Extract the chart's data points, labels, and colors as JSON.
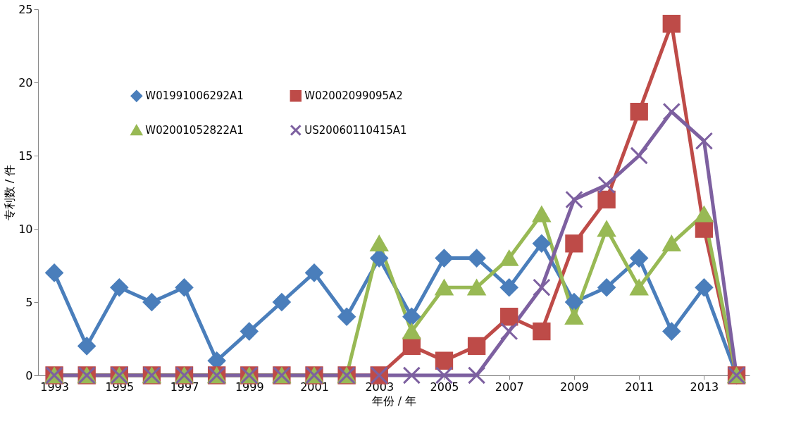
{
  "chart_data": {
    "type": "line",
    "xlabel": "年份 / 年",
    "ylabel": "专利数 / 件",
    "x": [
      1993,
      1994,
      1995,
      1996,
      1997,
      1998,
      1999,
      2000,
      2001,
      2002,
      2003,
      2004,
      2005,
      2006,
      2007,
      2008,
      2009,
      2010,
      2011,
      2012,
      2013,
      2014
    ],
    "xlim": [
      1992.5,
      2014.4
    ],
    "xticks": [
      1993,
      1995,
      1997,
      1999,
      2001,
      2003,
      2005,
      2007,
      2009,
      2011,
      2013
    ],
    "ylim": [
      0,
      25
    ],
    "yticks": [
      0,
      5,
      10,
      15,
      20,
      25
    ],
    "grid": false,
    "legend": "top",
    "line_style": "solid",
    "series": [
      {
        "name": "W01991006292A1",
        "color": "#4a7ebb",
        "marker": "diamond",
        "values": [
          7,
          2,
          6,
          5,
          6,
          1,
          3,
          5,
          7,
          4,
          8,
          4,
          8,
          8,
          6,
          9,
          5,
          6,
          8,
          3,
          6,
          0
        ]
      },
      {
        "name": "W02002099095A2",
        "color": "#be4b48",
        "marker": "square",
        "values": [
          0,
          0,
          0,
          0,
          0,
          0,
          0,
          0,
          0,
          0,
          0,
          2,
          1,
          2,
          4,
          3,
          9,
          12,
          18,
          24,
          10,
          0
        ]
      },
      {
        "name": "W02001052822A1",
        "color": "#98b954",
        "marker": "triangle",
        "values": [
          0,
          0,
          0,
          0,
          0,
          0,
          0,
          0,
          0,
          0,
          9,
          3,
          6,
          6,
          8,
          11,
          4,
          10,
          6,
          9,
          11,
          0
        ]
      },
      {
        "name": "US20060110415A1",
        "color": "#7d60a0",
        "marker": "cross",
        "values": [
          0,
          0,
          0,
          0,
          0,
          0,
          0,
          0,
          0,
          0,
          0,
          0,
          0,
          0,
          3,
          6,
          12,
          13,
          15,
          18,
          16,
          0
        ]
      }
    ]
  }
}
